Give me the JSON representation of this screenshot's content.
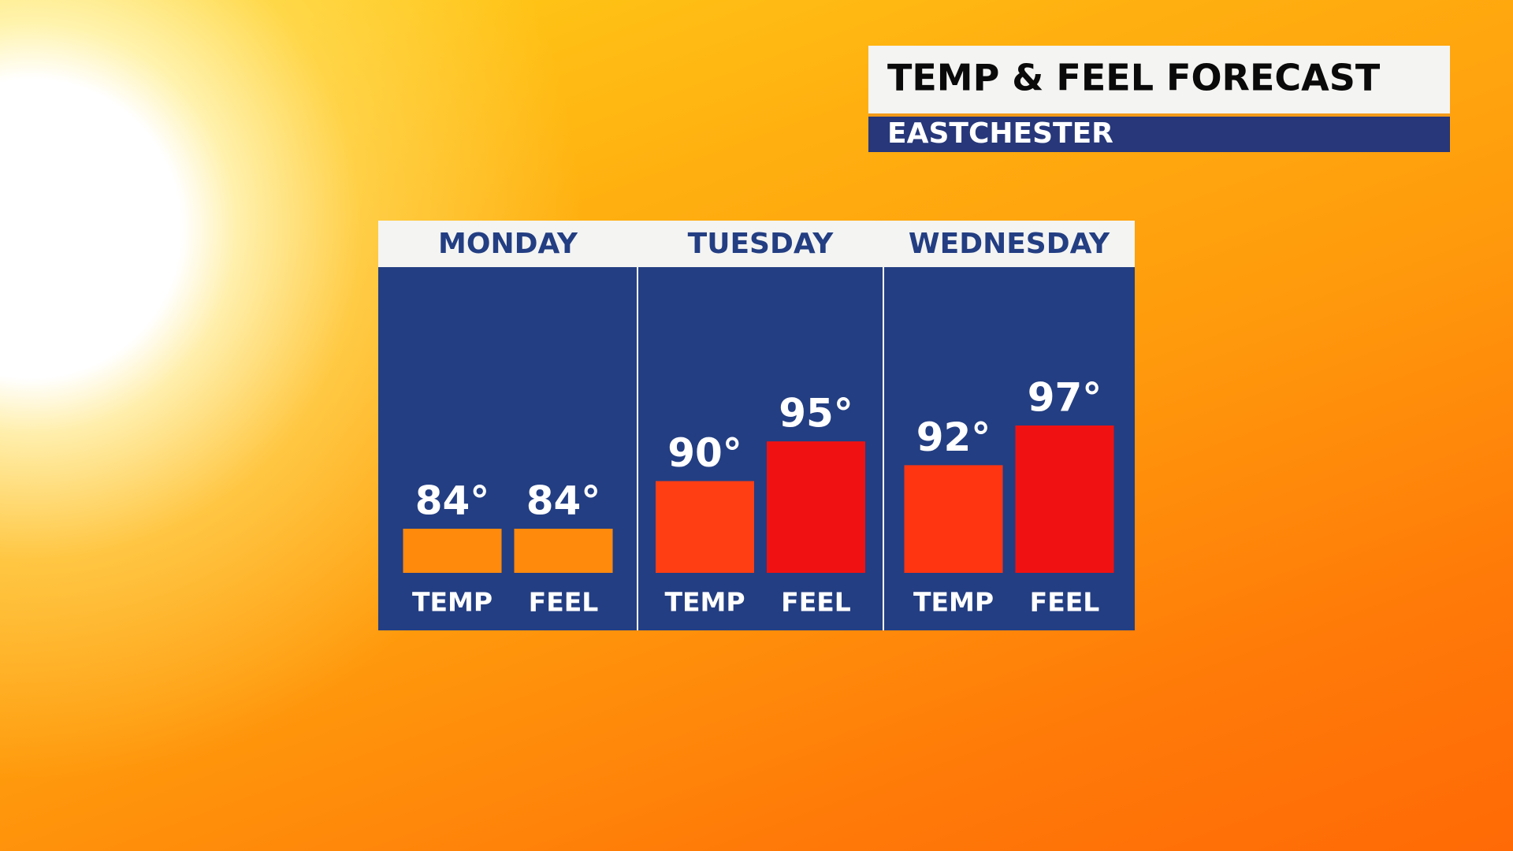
{
  "chart_data": {
    "type": "bar",
    "title": "TEMP & FEEL FORECAST",
    "subtitle": "EASTCHESTER",
    "categories": [
      "MONDAY",
      "TUESDAY",
      "WEDNESDAY"
    ],
    "series": [
      {
        "name": "TEMP",
        "colors": [
          "#ff8a0c",
          "#ff3e14",
          "#ff3512"
        ],
        "values": [
          84,
          90,
          92
        ],
        "value_labels": [
          "84°",
          "90°",
          "92°"
        ]
      },
      {
        "name": "FEEL",
        "colors": [
          "#ff8a0c",
          "#f01212",
          "#f01212"
        ],
        "values": [
          84,
          95,
          97
        ],
        "value_labels": [
          "84°",
          "95°",
          "97°"
        ]
      }
    ]
  }
}
